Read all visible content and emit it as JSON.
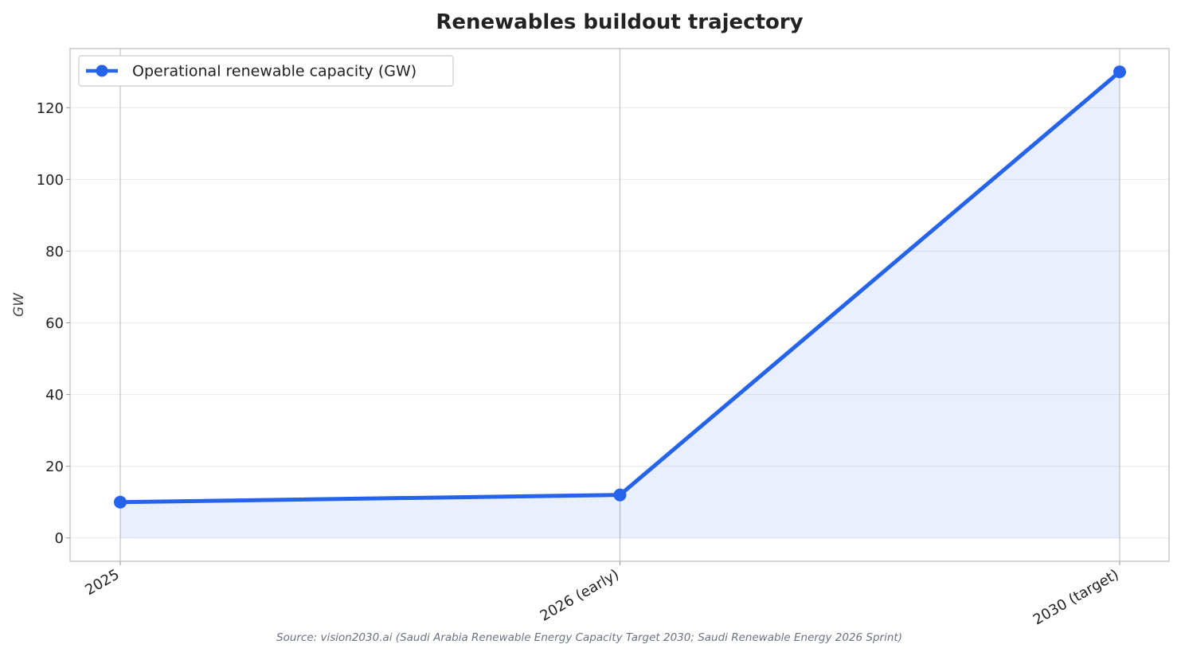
{
  "chart_data": {
    "type": "line",
    "title": "Renewables buildout trajectory",
    "xlabel": "",
    "ylabel": "GW",
    "categories": [
      "2025",
      "2026 (early)",
      "2030 (target)"
    ],
    "series": [
      {
        "name": "Operational renewable capacity (GW)",
        "values": [
          10,
          12,
          130
        ]
      }
    ],
    "ylim": [
      -6.5,
      136.5
    ],
    "yticks": [
      0,
      20,
      40,
      60,
      80,
      100,
      120
    ],
    "grid": true,
    "area_fill": true,
    "legend_position": "top-left",
    "colors": {
      "line": "#2563eb",
      "fill": "#2563eb",
      "frame": "#c8c8c8",
      "grid": "#ececec"
    },
    "source": "Source: vision2030.ai (Saudi Arabia Renewable Energy Capacity Target 2030; Saudi Renewable Energy 2026 Sprint)"
  }
}
